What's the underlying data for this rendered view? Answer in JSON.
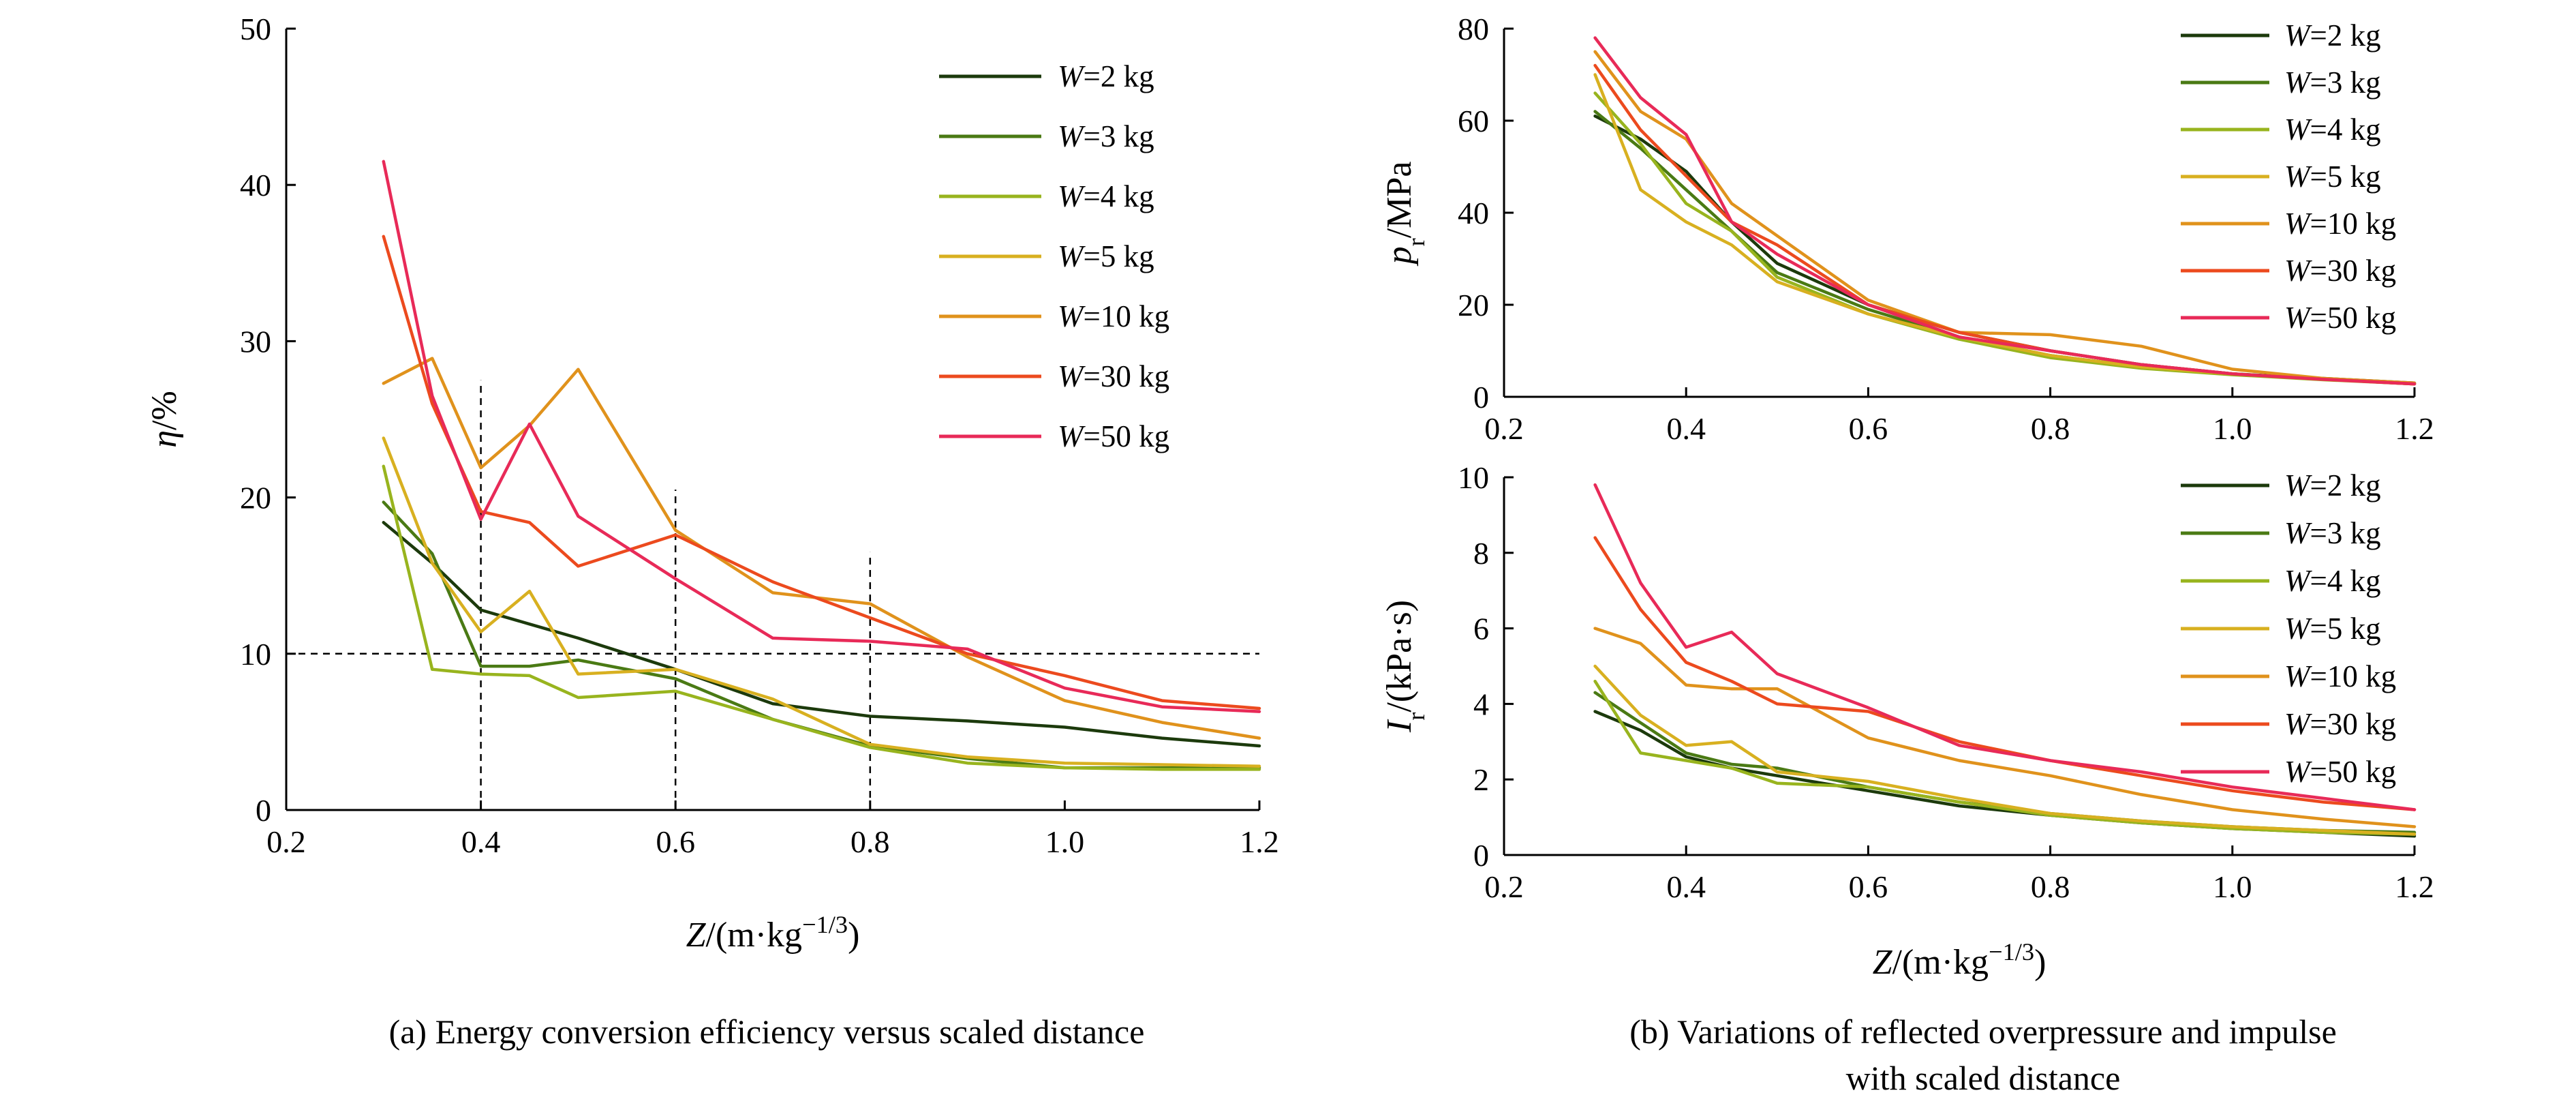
{
  "colors": {
    "W2": "#1c3a0c",
    "W3": "#4a7a14",
    "W4": "#98b41e",
    "W5": "#d8b020",
    "W10": "#e0921c",
    "W30": "#ec4a1e",
    "W50": "#e82a58",
    "axis": "#000000",
    "reference_lines": "#000000"
  },
  "captions": {
    "a": "(a) Energy conversion efficiency versus scaled distance",
    "b_line1": "(b) Variations of reflected overpressure and impulse",
    "b_line2": "with scaled distance"
  },
  "chart_data": [
    {
      "id": "a",
      "type": "line",
      "xlabel": "Z/(m·kg^{-1/3})",
      "ylabel": "η/%",
      "xlim": [
        0.2,
        1.2
      ],
      "ylim": [
        0,
        50
      ],
      "xticks": [
        "0.2",
        "0.4",
        "0.6",
        "0.8",
        "1.0",
        "1.2"
      ],
      "yticks": [
        "0",
        "10",
        "20",
        "30",
        "40",
        "50"
      ],
      "legend_position": "top-right",
      "reference_lines": {
        "y": 10,
        "x": [
          0.4,
          0.6,
          0.8
        ],
        "style": "dashed"
      },
      "x": [
        0.3,
        0.35,
        0.4,
        0.45,
        0.5,
        0.6,
        0.7,
        0.8,
        0.9,
        1.0,
        1.1,
        1.2
      ],
      "series": [
        {
          "name": "W=2 kg",
          "color_key": "W2",
          "values": [
            18.4,
            15.8,
            12.8,
            11.9,
            11.0,
            9.0,
            6.8,
            6.0,
            5.7,
            5.3,
            4.6,
            4.1
          ]
        },
        {
          "name": "W=3 kg",
          "color_key": "W3",
          "values": [
            19.7,
            16.4,
            9.2,
            9.2,
            9.6,
            8.4,
            5.8,
            4.1,
            3.3,
            2.7,
            2.7,
            2.7
          ]
        },
        {
          "name": "W=4 kg",
          "color_key": "W4",
          "values": [
            22.0,
            9.0,
            8.7,
            8.6,
            7.2,
            7.6,
            5.8,
            4.0,
            3.0,
            2.7,
            2.6,
            2.6
          ]
        },
        {
          "name": "W=5 kg",
          "color_key": "W5",
          "values": [
            23.8,
            15.8,
            11.4,
            14.0,
            8.7,
            9.0,
            7.1,
            4.2,
            3.4,
            3.0,
            2.9,
            2.8
          ]
        },
        {
          "name": "W=10 kg",
          "color_key": "W10",
          "values": [
            27.3,
            28.9,
            21.9,
            24.6,
            28.2,
            17.9,
            13.9,
            13.2,
            9.8,
            7.0,
            5.6,
            4.6
          ]
        },
        {
          "name": "W=30 kg",
          "color_key": "W30",
          "values": [
            36.7,
            26.0,
            19.1,
            18.4,
            15.6,
            17.6,
            14.6,
            12.3,
            10.0,
            8.6,
            7.0,
            6.5
          ]
        },
        {
          "name": "W=50 kg",
          "color_key": "W50",
          "values": [
            41.5,
            26.5,
            18.6,
            24.7,
            18.8,
            14.8,
            11.0,
            10.8,
            10.3,
            7.8,
            6.6,
            6.3
          ]
        }
      ]
    },
    {
      "id": "b_top",
      "type": "line",
      "xlabel": "",
      "ylabel": "p_r/MPa",
      "xlim": [
        0.2,
        1.2
      ],
      "ylim": [
        0,
        80
      ],
      "xticks": [
        "0.2",
        "0.4",
        "0.6",
        "0.8",
        "1.0",
        "1.2"
      ],
      "yticks": [
        "0",
        "20",
        "40",
        "60",
        "80"
      ],
      "legend_position": "top-right",
      "x": [
        0.3,
        0.35,
        0.4,
        0.45,
        0.5,
        0.6,
        0.7,
        0.8,
        0.9,
        1.0,
        1.1,
        1.2
      ],
      "series": [
        {
          "name": "W=2 kg",
          "color_key": "W2",
          "values": [
            61,
            56,
            49,
            38,
            29,
            20,
            14,
            10,
            7,
            5,
            4,
            3
          ]
        },
        {
          "name": "W=3 kg",
          "color_key": "W3",
          "values": [
            62,
            54,
            45,
            36,
            27,
            19,
            13,
            9,
            6.5,
            5,
            3.8,
            2.8
          ]
        },
        {
          "name": "W=4 kg",
          "color_key": "W4",
          "values": [
            66,
            55,
            42,
            36,
            26,
            18,
            12.5,
            8.5,
            6.2,
            4.8,
            3.7,
            2.8
          ]
        },
        {
          "name": "W=5 kg",
          "color_key": "W5",
          "values": [
            70,
            45,
            38,
            33,
            25,
            18,
            13,
            9,
            6.5,
            5,
            3.8,
            2.8
          ]
        },
        {
          "name": "W=10 kg",
          "color_key": "W10",
          "values": [
            75,
            62,
            56,
            42,
            35,
            21,
            14,
            13.5,
            11,
            6,
            4,
            3
          ]
        },
        {
          "name": "W=30 kg",
          "color_key": "W30",
          "values": [
            72,
            58,
            48,
            38,
            33,
            20,
            14,
            10,
            7,
            5,
            3.8,
            2.8
          ]
        },
        {
          "name": "W=50 kg",
          "color_key": "W50",
          "values": [
            78,
            65,
            57,
            38,
            31,
            20,
            13,
            10,
            7,
            5,
            3.8,
            2.8
          ]
        }
      ]
    },
    {
      "id": "b_bottom",
      "type": "line",
      "xlabel": "Z/(m·kg^{-1/3})",
      "ylabel": "I_r/(kPa·s)",
      "xlim": [
        0.2,
        1.2
      ],
      "ylim": [
        0,
        10
      ],
      "xticks": [
        "0.2",
        "0.4",
        "0.6",
        "0.8",
        "1.0",
        "1.2"
      ],
      "yticks": [
        "0",
        "2",
        "4",
        "6",
        "8",
        "10"
      ],
      "legend_position": "top-right",
      "x": [
        0.3,
        0.35,
        0.4,
        0.45,
        0.5,
        0.6,
        0.7,
        0.8,
        0.9,
        1.0,
        1.1,
        1.2
      ],
      "series": [
        {
          "name": "W=2 kg",
          "color_key": "W2",
          "values": [
            3.8,
            3.3,
            2.6,
            2.3,
            2.1,
            1.7,
            1.3,
            1.05,
            0.85,
            0.7,
            0.6,
            0.5
          ]
        },
        {
          "name": "W=3 kg",
          "color_key": "W3",
          "values": [
            4.3,
            3.5,
            2.7,
            2.4,
            2.3,
            1.8,
            1.4,
            1.1,
            0.9,
            0.75,
            0.65,
            0.6
          ]
        },
        {
          "name": "W=4 kg",
          "color_key": "W4",
          "values": [
            4.6,
            2.7,
            2.5,
            2.3,
            1.9,
            1.8,
            1.4,
            1.05,
            0.85,
            0.7,
            0.6,
            0.55
          ]
        },
        {
          "name": "W=5 kg",
          "color_key": "W5",
          "values": [
            5.0,
            3.7,
            2.9,
            3.0,
            2.2,
            1.95,
            1.5,
            1.1,
            0.9,
            0.75,
            0.65,
            0.55
          ]
        },
        {
          "name": "W=10 kg",
          "color_key": "W10",
          "values": [
            6.0,
            5.6,
            4.5,
            4.4,
            4.4,
            3.1,
            2.5,
            2.1,
            1.6,
            1.2,
            0.95,
            0.75
          ]
        },
        {
          "name": "W=30 kg",
          "color_key": "W30",
          "values": [
            8.4,
            6.5,
            5.1,
            4.6,
            4.0,
            3.8,
            3.0,
            2.5,
            2.1,
            1.7,
            1.4,
            1.2
          ]
        },
        {
          "name": "W=50 kg",
          "color_key": "W50",
          "values": [
            9.8,
            7.2,
            5.5,
            5.9,
            4.8,
            3.9,
            2.9,
            2.5,
            2.2,
            1.8,
            1.5,
            1.2
          ]
        }
      ]
    }
  ]
}
